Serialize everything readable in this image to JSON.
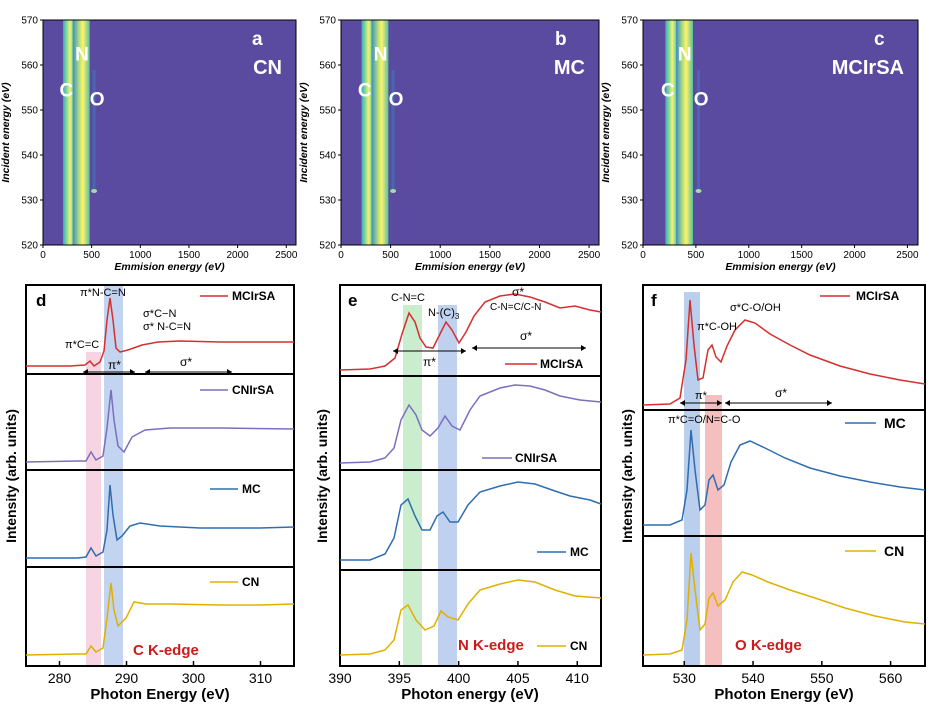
{
  "colors": {
    "bg_map": "#5a4aa0",
    "red": "#d62f2f",
    "purple": "#7b6fbf",
    "blue": "#2f6db0",
    "gold": "#e0b000",
    "label_red": "#cc1b1b",
    "pink_band": "#f4c6d8",
    "blue_band": "#a9c2ea",
    "green_band": "#bde8c1",
    "red_band": "#f2a9a9"
  },
  "maps": [
    {
      "id": "a",
      "letter": "a",
      "sample": "CN",
      "peak_labels": [
        "C",
        "N",
        "O"
      ]
    },
    {
      "id": "b",
      "letter": "b",
      "sample": "MC",
      "peak_labels": [
        "C",
        "N",
        "O"
      ]
    },
    {
      "id": "c",
      "letter": "c",
      "sample": "MCIrSA",
      "peak_labels": [
        "C",
        "N",
        "O"
      ]
    }
  ],
  "map_axes": {
    "xlabel": "Emmision energy (eV)",
    "ylabel": "Incident energy (eV)",
    "xticks": [
      0,
      500,
      1000,
      1500,
      2000,
      2500
    ],
    "yticks": [
      520,
      530,
      540,
      550,
      560,
      570
    ]
  },
  "chart_data": [
    {
      "type": "heatmap",
      "panel": "a",
      "title": "CN",
      "xlabel": "Emmision energy (eV)",
      "ylabel": "Incident energy (eV)",
      "xlim": [
        0,
        2600
      ],
      "ylim": [
        520,
        570
      ],
      "emission_bands_eV": [
        277,
        392,
        525
      ]
    },
    {
      "type": "heatmap",
      "panel": "b",
      "title": "MC",
      "xlabel": "Emmision energy (eV)",
      "ylabel": "Incident energy (eV)",
      "xlim": [
        0,
        2600
      ],
      "ylim": [
        520,
        570
      ],
      "emission_bands_eV": [
        277,
        392,
        525
      ]
    },
    {
      "type": "heatmap",
      "panel": "c",
      "title": "MCIrSA",
      "xlabel": "Emmision energy (eV)",
      "ylabel": "Incident energy (eV)",
      "xlim": [
        0,
        2600
      ],
      "ylim": [
        520,
        570
      ],
      "emission_bands_eV": [
        277,
        392,
        525
      ]
    },
    {
      "type": "line",
      "panel": "d",
      "title": "C K-edge",
      "xlabel": "Photon Energy (eV)",
      "ylabel": "Intensity (arb. units)",
      "xlim": [
        275,
        315
      ],
      "xticks": [
        280,
        290,
        300,
        310
      ],
      "series": [
        {
          "name": "MCIrSA",
          "color": "#d62f2f"
        },
        {
          "name": "CNIrSA",
          "color": "#7b6fbf"
        },
        {
          "name": "MC",
          "color": "#2f6db0"
        },
        {
          "name": "CN",
          "color": "#e0b000"
        }
      ],
      "peaks_eV": [
        285.0,
        288.0,
        293.0
      ],
      "bands": [
        {
          "from": 284.0,
          "to": 286.0,
          "color": "pink"
        },
        {
          "from": 287.0,
          "to": 289.0,
          "color": "blue"
        }
      ],
      "annotations": [
        "π*N-C=N",
        "σ*C−N",
        "σ* N-C=N",
        "π*C=C",
        "π*",
        "σ*"
      ]
    },
    {
      "type": "line",
      "panel": "e",
      "title": "N K-edge",
      "xlabel": "Photon energy (eV)",
      "ylabel": "Intensity (arb. units)",
      "xlim": [
        390,
        412
      ],
      "xticks": [
        390,
        395,
        400,
        405,
        410
      ],
      "series": [
        {
          "name": "MCIrSA",
          "color": "#d62f2f"
        },
        {
          "name": "CNIrSA",
          "color": "#7b6fbf"
        },
        {
          "name": "MC",
          "color": "#2f6db0"
        },
        {
          "name": "CN",
          "color": "#e0b000"
        }
      ],
      "peaks_eV": [
        395.8,
        399.0,
        405.5
      ],
      "bands": [
        {
          "from": 395.3,
          "to": 396.8,
          "color": "green"
        },
        {
          "from": 398.3,
          "to": 399.8,
          "color": "blue"
        }
      ],
      "annotations": [
        "C-N=C",
        "N-(C)3",
        "σ*",
        "C-N=C/C-N",
        "π*",
        "σ*"
      ]
    },
    {
      "type": "line",
      "panel": "f",
      "title": "O K-edge",
      "xlabel": "Photon Energy (eV)",
      "ylabel": "Intensity (arb. units)",
      "xlim": [
        524,
        565
      ],
      "xticks": [
        530,
        540,
        550,
        560
      ],
      "series": [
        {
          "name": "MCIrSA",
          "color": "#d62f2f"
        },
        {
          "name": "MC",
          "color": "#2f6db0"
        },
        {
          "name": "CN",
          "color": "#e0b000"
        }
      ],
      "peaks_eV": [
        532.0,
        535.0,
        540.0
      ],
      "bands": [
        {
          "from": 530.8,
          "to": 532.6,
          "color": "blue"
        },
        {
          "from": 533.8,
          "to": 535.8,
          "color": "red"
        }
      ],
      "annotations": [
        "σ*C-O/OH",
        "π*C-OH",
        "π*",
        "σ*",
        "π*C=O/N=C-O"
      ]
    }
  ],
  "text": {
    "panel_d_letter": "d",
    "panel_e_letter": "e",
    "panel_f_letter": "f",
    "d_edge": "C K-edge",
    "e_edge": "N K-edge",
    "f_edge": "O K-edge",
    "d_xlabel": "Photon Energy (eV)",
    "e_xlabel": "Photon energy (eV)",
    "f_xlabel": "Photon Energy (eV)",
    "ylabel": "Intensity (arb. units)",
    "d_ann_pi_ncn": "π*N-C=N",
    "d_ann_sigma_cn": "σ*C−N",
    "d_ann_sigma_ncn": "σ* N-C=N",
    "d_ann_pi_cc": "π*C=C",
    "d_ann_pi": "π*",
    "d_ann_sigma": "σ*",
    "e_ann_cnc": "C-N=C",
    "e_ann_nc3": "N-(C)",
    "e_ann_nc3_sub": "3",
    "e_ann_sigma_top": "σ*",
    "e_ann_cnc_cn": "C-N=C/C-N",
    "e_ann_sigma": "σ*",
    "e_ann_pi": "π*",
    "f_ann_sigma_co": "σ*C-O/OH",
    "f_ann_pi_coh": "π*C-OH",
    "f_ann_pi": "π*",
    "f_ann_sigma": "σ*",
    "f_ann_pi_co": "π*C=O/N=C-O",
    "legend_mcirsa": "MCIrSA",
    "legend_cnirsa": "CNIrSA",
    "legend_mc": "MC",
    "legend_cn": "CN"
  }
}
